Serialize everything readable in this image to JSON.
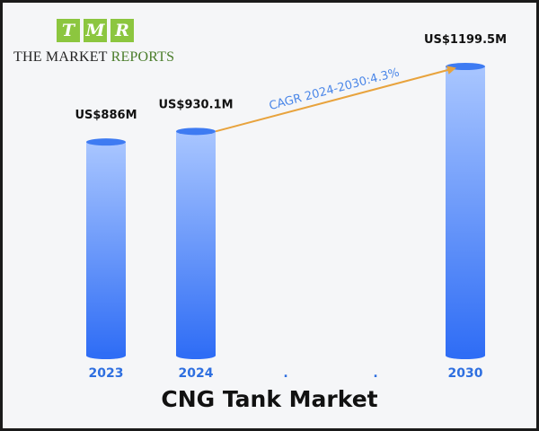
{
  "logo": {
    "letters": [
      "T",
      "M",
      "R"
    ],
    "line_part1": "THE MARKET",
    "line_part2": "REPORTS",
    "tile_color": "#8cc63f",
    "accent_color": "#4a7d2a"
  },
  "chart_data": {
    "type": "bar",
    "title": "CNG Tank Market",
    "categories": [
      "2023",
      "2024",
      ".",
      ".",
      "2030"
    ],
    "series": [
      {
        "values": [
          886,
          930.1,
          null,
          null,
          1199.5
        ]
      }
    ],
    "data_labels": [
      "US$886M",
      "US$930.1M",
      "",
      "",
      "US$1199.5M"
    ],
    "unit": "US$ Million",
    "annotation": {
      "text": "CAGR 2024-2030:4.3%",
      "from": "2024",
      "to": "2030",
      "color": "#e8a33d"
    },
    "ylim": [
      0,
      1199.5
    ],
    "grid": false,
    "legend": "none",
    "colors": {
      "bar_top": "#a9c6ff",
      "bar_bottom": "#2f6df5",
      "tick_label": "#2e6fe0",
      "annotation_text": "#4a86e8"
    }
  }
}
